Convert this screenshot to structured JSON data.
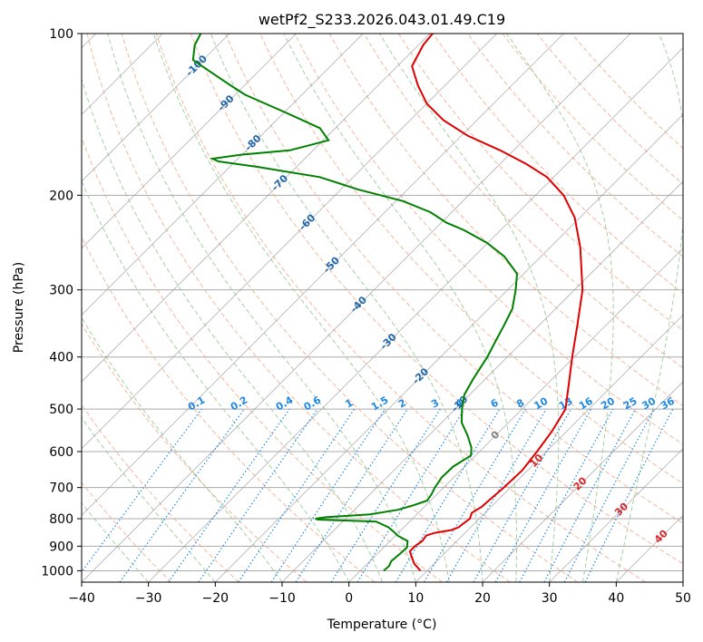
{
  "chart_data": {
    "type": "skew-t log-p",
    "title": "wetPf2_S233.2026.043.01.49.C19",
    "xlabel": "Temperature (°C)",
    "ylabel": "Pressure (hPa)",
    "xlim": [
      -40,
      50
    ],
    "ylim": [
      1050,
      100
    ],
    "x_ticks": [
      "−40",
      "−30",
      "−20",
      "−10",
      "0",
      "10",
      "20",
      "30",
      "40",
      "50"
    ],
    "x_tick_values": [
      -40,
      -30,
      -20,
      -10,
      0,
      10,
      20,
      30,
      40,
      50
    ],
    "y_ticks": [
      "1000",
      "900",
      "800",
      "700",
      "600",
      "500",
      "400",
      "300",
      "200",
      "100"
    ],
    "y_tick_values": [
      1000,
      900,
      800,
      700,
      600,
      500,
      400,
      300,
      200,
      100
    ],
    "colors": {
      "temperature": "#e00000",
      "dewpoint": "#008000",
      "dry_adiabat": "#f4a582",
      "moist_adiabat": "#8cc58c",
      "mixing_ratio": "#1e88e5",
      "grid": "#aaaaaa",
      "isotherm": "#9e9e9e"
    },
    "temperature_profile": [
      [
        1000,
        9.0
      ],
      [
        970,
        7.0
      ],
      [
        940,
        5.5
      ],
      [
        920,
        4.5
      ],
      [
        900,
        4.5
      ],
      [
        880,
        4.8
      ],
      [
        860,
        4.6
      ],
      [
        850,
        5.5
      ],
      [
        840,
        7.5
      ],
      [
        830,
        8.2
      ],
      [
        820,
        8.3
      ],
      [
        800,
        8.6
      ],
      [
        780,
        8.0
      ],
      [
        760,
        8.6
      ],
      [
        740,
        8.7
      ],
      [
        700,
        9.0
      ],
      [
        650,
        9.2
      ],
      [
        600,
        8.6
      ],
      [
        550,
        7.8
      ],
      [
        500,
        6.5
      ],
      [
        450,
        3.3
      ],
      [
        400,
        -0.3
      ],
      [
        350,
        -4.2
      ],
      [
        300,
        -8.8
      ],
      [
        250,
        -15.5
      ],
      [
        220,
        -20.8
      ],
      [
        200,
        -25.8
      ],
      [
        185,
        -31.0
      ],
      [
        175,
        -36.0
      ],
      [
        165,
        -42.0
      ],
      [
        155,
        -49.0
      ],
      [
        145,
        -55.0
      ],
      [
        135,
        -60.0
      ],
      [
        125,
        -64.0
      ],
      [
        115,
        -67.8
      ],
      [
        105,
        -69.3
      ],
      [
        100,
        -69.6
      ]
    ],
    "dewpoint_profile": [
      [
        1000,
        3.5
      ],
      [
        980,
        3.6
      ],
      [
        960,
        3.2
      ],
      [
        930,
        3.4
      ],
      [
        905,
        3.5
      ],
      [
        880,
        2.6
      ],
      [
        860,
        0.3
      ],
      [
        850,
        -0.5
      ],
      [
        830,
        -2.3
      ],
      [
        810,
        -5.0
      ],
      [
        803,
        -14.0
      ],
      [
        800,
        -14.5
      ],
      [
        795,
        -13.2
      ],
      [
        785,
        -7.0
      ],
      [
        770,
        -3.5
      ],
      [
        755,
        -1.8
      ],
      [
        740,
        -0.5
      ],
      [
        720,
        -0.8
      ],
      [
        700,
        -1.3
      ],
      [
        670,
        -1.8
      ],
      [
        640,
        -1.7
      ],
      [
        610,
        -0.7
      ],
      [
        590,
        -1.8
      ],
      [
        560,
        -4.2
      ],
      [
        530,
        -7.0
      ],
      [
        500,
        -9.0
      ],
      [
        470,
        -10.8
      ],
      [
        440,
        -11.8
      ],
      [
        400,
        -13.0
      ],
      [
        370,
        -14.3
      ],
      [
        350,
        -15.2
      ],
      [
        325,
        -16.5
      ],
      [
        300,
        -18.8
      ],
      [
        280,
        -21.0
      ],
      [
        260,
        -25.5
      ],
      [
        245,
        -30.2
      ],
      [
        232,
        -35.6
      ],
      [
        225,
        -39.2
      ],
      [
        215,
        -43.2
      ],
      [
        205,
        -49.0
      ],
      [
        195,
        -57.5
      ],
      [
        185,
        -65.0
      ],
      [
        177,
        -76.0
      ],
      [
        173,
        -82.5
      ],
      [
        171,
        -83.8
      ],
      [
        168,
        -80.0
      ],
      [
        165,
        -73.5
      ],
      [
        158,
        -69.2
      ],
      [
        150,
        -72.3
      ],
      [
        140,
        -80.0
      ],
      [
        130,
        -88.5
      ],
      [
        125,
        -92.0
      ],
      [
        118,
        -97.0
      ],
      [
        112,
        -101.5
      ],
      [
        105,
        -103.5
      ],
      [
        100,
        -104.3
      ]
    ],
    "dry_adiabats_C": [
      -30,
      -20,
      -10,
      0,
      10,
      20,
      30,
      40,
      50,
      60,
      70,
      80,
      90,
      100,
      110,
      120,
      130,
      140,
      150,
      160
    ],
    "moist_adiabats_C": [
      -30,
      -20,
      -10,
      0,
      5,
      10,
      15,
      20,
      25,
      30,
      35,
      40
    ],
    "mixing_ratio_lines_gkg": [
      0.1,
      0.2,
      0.4,
      0.6,
      1,
      1.5,
      2,
      3,
      4,
      6,
      8,
      10,
      13,
      16,
      20,
      25,
      30,
      36
    ],
    "mixing_ratio_labels": [
      "0.1",
      "0.2",
      "0.4",
      "0.6",
      "1",
      "1.5",
      "2",
      "3",
      "4",
      "6",
      "8",
      "10",
      "13",
      "16",
      "20",
      "25",
      "30",
      "36"
    ],
    "isotherm_labels": [
      {
        "text": "-100",
        "t": -100,
        "p": 115
      },
      {
        "text": "-90",
        "t": -90,
        "p": 135
      },
      {
        "text": "-80",
        "t": -80,
        "p": 160
      },
      {
        "text": "-70",
        "t": -70,
        "p": 190
      },
      {
        "text": "-60",
        "t": -60,
        "p": 225
      },
      {
        "text": "-50",
        "t": -50,
        "p": 270
      },
      {
        "text": "-40",
        "t": -40,
        "p": 320
      },
      {
        "text": "-30",
        "t": -30,
        "p": 375
      },
      {
        "text": "-20",
        "t": -20,
        "p": 435
      },
      {
        "text": "-10",
        "t": -10,
        "p": 490
      },
      {
        "text": "0",
        "t": 0,
        "p": 560
      },
      {
        "text": "10",
        "t": 10,
        "p": 625
      },
      {
        "text": "20",
        "t": 20,
        "p": 690
      },
      {
        "text": "30",
        "t": 30,
        "p": 770
      },
      {
        "text": "40",
        "t": 40,
        "p": 865
      }
    ]
  }
}
